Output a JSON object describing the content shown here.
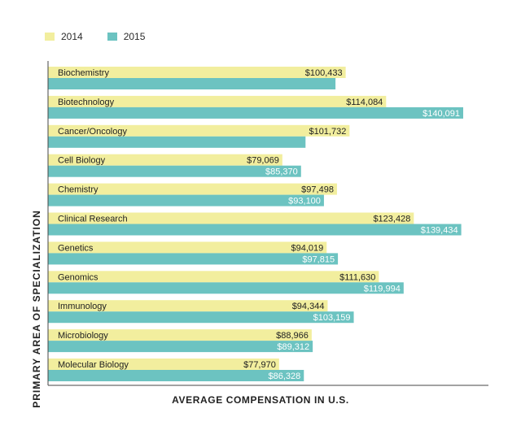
{
  "chart_data": {
    "type": "bar",
    "orientation": "horizontal",
    "title": "",
    "xlabel": "AVERAGE COMPENSATION IN U.S.",
    "ylabel": "PRIMARY AREA OF SPECIALIZATION",
    "xlim": [
      0,
      140091
    ],
    "grid": false,
    "legend_position": "top-left",
    "categories": [
      "Biochemistry",
      "Biotechnology",
      "Cancer/Oncology",
      "Cell Biology",
      "Chemistry",
      "Clinical Research",
      "Genetics",
      "Genomics",
      "Immunology",
      "Microbiology",
      "Molecular Biology"
    ],
    "series": [
      {
        "name": "2014",
        "color": "#f2ee9e",
        "values": [
          100433,
          114084,
          101732,
          79069,
          97498,
          123428,
          94019,
          111630,
          94344,
          88966,
          77970
        ],
        "labels": [
          "$100,433",
          "$114,084",
          "$101,732",
          "$79,069",
          "$97,498",
          "$123,428",
          "$94,019",
          "$111,630",
          "$94,344",
          "$88,966",
          "$77,970"
        ]
      },
      {
        "name": "2015",
        "color": "#6cc3c1",
        "values": [
          96994,
          140091,
          86885,
          85370,
          93100,
          139434,
          97815,
          119994,
          103159,
          89312,
          86328
        ],
        "labels": [
          "",
          "$140,091",
          "",
          "$85,370",
          "$93,100",
          "$139,434",
          "$97,815",
          "$119,994",
          "$103,159",
          "$89,312",
          "$86,328"
        ]
      }
    ]
  }
}
